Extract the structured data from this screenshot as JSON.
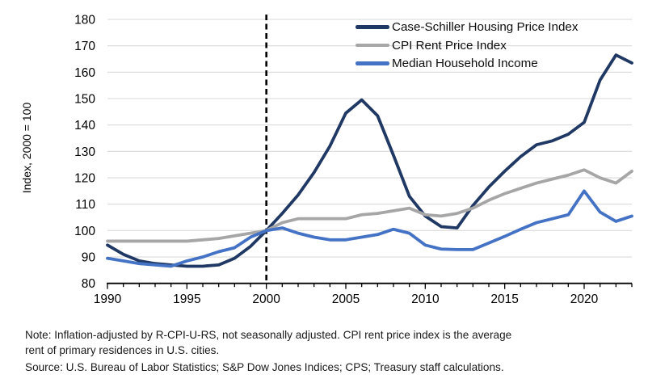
{
  "chart_data": {
    "type": "line",
    "title": "",
    "ylabel": "Index, 2000 = 100",
    "ylim": [
      80,
      180
    ],
    "ytick_step": 10,
    "grid": "horizontal",
    "legend_position": "top-right-inside",
    "reference_line_x": 2000,
    "x": [
      1990,
      1991,
      1992,
      1993,
      1994,
      1995,
      1996,
      1997,
      1998,
      1999,
      2000,
      2001,
      2002,
      2003,
      2004,
      2005,
      2006,
      2007,
      2008,
      2009,
      2010,
      2011,
      2012,
      2013,
      2014,
      2015,
      2016,
      2017,
      2018,
      2019,
      2020,
      2021,
      2022,
      2023
    ],
    "xtick_major": [
      1990,
      1995,
      2000,
      2005,
      2010,
      2015,
      2020
    ],
    "series": [
      {
        "name": "Case-Schiller Housing Price Index",
        "color": "#1F3864",
        "values": [
          94.5,
          91,
          88.5,
          87.5,
          87,
          86.5,
          86.5,
          87,
          89.5,
          94,
          100,
          106.5,
          113.5,
          122,
          132,
          144.5,
          149.5,
          143.5,
          128.5,
          113,
          105.5,
          101.5,
          101,
          109.5,
          116.5,
          122.5,
          128,
          132.5,
          134,
          136.5,
          141,
          157,
          166.5,
          163.5
        ]
      },
      {
        "name": "CPI Rent Price Index",
        "color": "#A6A6A6",
        "values": [
          96,
          96,
          96,
          96,
          96,
          96,
          96.5,
          97,
          98,
          99,
          100,
          103,
          104.5,
          104.5,
          104.5,
          104.5,
          106,
          106.5,
          107.5,
          108.5,
          106,
          105.5,
          106.5,
          108.5,
          111.5,
          114,
          116,
          118,
          119.5,
          121,
          123,
          120,
          118,
          122.5
        ]
      },
      {
        "name": "Median Household Income",
        "color": "#4472C4",
        "values": [
          89.5,
          88.5,
          87.5,
          87,
          86.5,
          88.5,
          90,
          92,
          93.5,
          97.5,
          100,
          101,
          99,
          97.5,
          96.5,
          96.5,
          97.5,
          98.5,
          100.5,
          99,
          94.5,
          93,
          92.8,
          92.8,
          95.3,
          97.8,
          100.5,
          103,
          104.5,
          106,
          115,
          107,
          103.5,
          105.5
        ]
      }
    ]
  },
  "notes": {
    "line1": "Note: Inflation-adjusted by R-CPI-U-RS, not seasonally adjusted. CPI rent price index is the average",
    "line2": "rent of primary residences in U.S. cities.",
    "source": "Source: U.S. Bureau of Labor Statistics; S&P Dow Jones Indices; CPS; Treasury staff calculations."
  }
}
